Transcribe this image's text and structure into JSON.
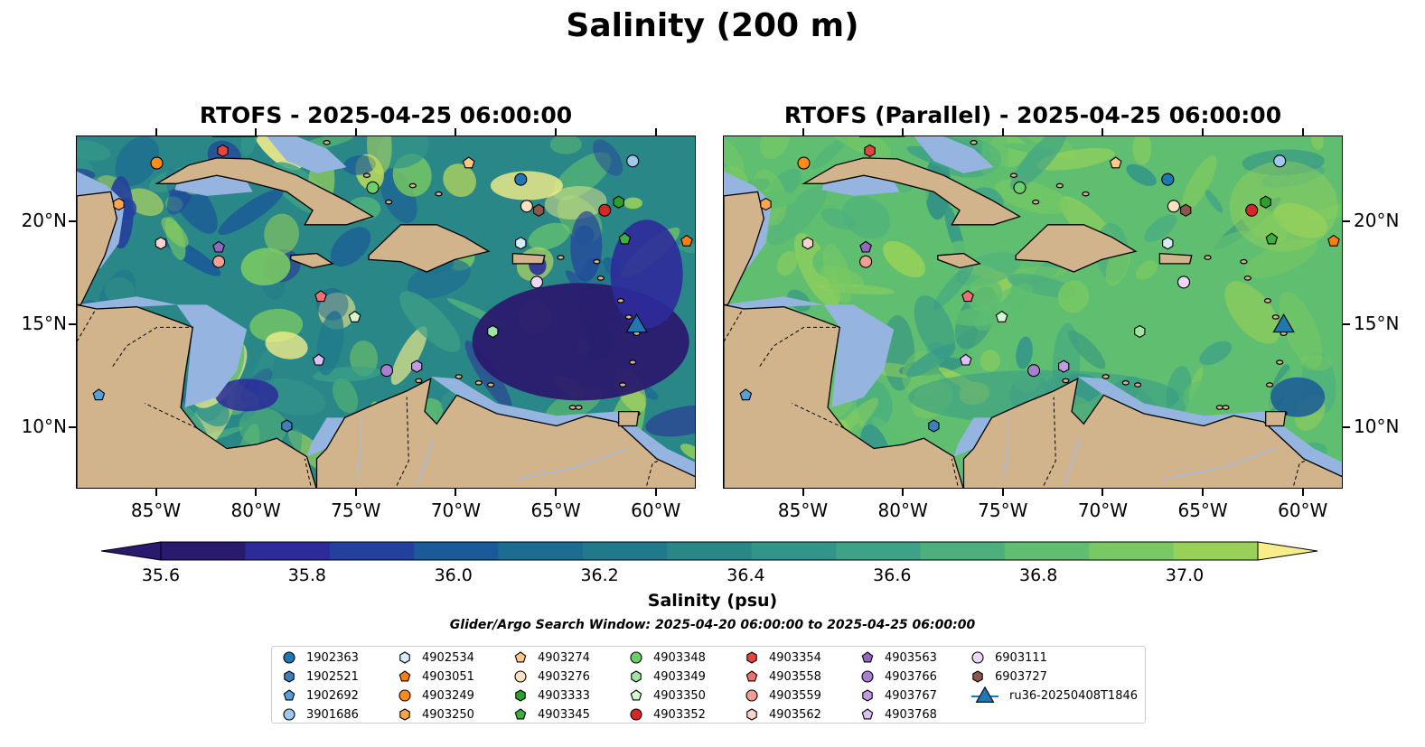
{
  "title": "Salinity (200 m)",
  "panels": [
    {
      "title": "RTOFS - 2025-04-25 06:00:00"
    },
    {
      "title": "RTOFS (Parallel) - 2025-04-25 06:00:00"
    }
  ],
  "axes": {
    "lon_ticks": [
      "85°W",
      "80°W",
      "75°W",
      "70°W",
      "65°W",
      "60°W"
    ],
    "lat_ticks": [
      "20°N",
      "15°N",
      "10°N"
    ],
    "lon_range": [
      -89,
      -58
    ],
    "lat_range": [
      7,
      24.2
    ]
  },
  "colorbar": {
    "label": "Salinity (psu)",
    "tick_labels": [
      "35.6",
      "35.8",
      "36.0",
      "36.2",
      "36.4",
      "36.6",
      "36.8",
      "37.0"
    ],
    "range": [
      35.6,
      37.1
    ],
    "extend": "both",
    "colors": [
      "#2a1a6e",
      "#2d2a9a",
      "#24409e",
      "#1a5a98",
      "#1d6c92",
      "#217a8c",
      "#2a8787",
      "#33958a",
      "#3ea287",
      "#4db07c",
      "#5fbe70",
      "#78c963",
      "#97d15a",
      "#bcda5c",
      "#f5ee8a"
    ]
  },
  "search_window": "Glider/Argo Search Window: 2025-04-20 06:00:00 to 2025-04-25 06:00:00",
  "legend": [
    {
      "label": "1902363",
      "color": "#1f77b4",
      "marker": "circle"
    },
    {
      "label": "1902521",
      "color": "#3d7fba",
      "marker": "hexagon"
    },
    {
      "label": "1902692",
      "color": "#5aa0d8",
      "marker": "pentagon"
    },
    {
      "label": "3901686",
      "color": "#9ec8ee",
      "marker": "circle"
    },
    {
      "label": "4902534",
      "color": "#d7ecfa",
      "marker": "hexagon"
    },
    {
      "label": "4903051",
      "color": "#ff7f0e",
      "marker": "pentagon"
    },
    {
      "label": "4903249",
      "color": "#ff8c1a",
      "marker": "circle"
    },
    {
      "label": "4903250",
      "color": "#ffa64d",
      "marker": "hexagon"
    },
    {
      "label": "4903274",
      "color": "#ffc98a",
      "marker": "pentagon"
    },
    {
      "label": "4903276",
      "color": "#ffe2c2",
      "marker": "circle"
    },
    {
      "label": "4903333",
      "color": "#2ca02c",
      "marker": "hexagon"
    },
    {
      "label": "4903345",
      "color": "#3fb03f",
      "marker": "pentagon"
    },
    {
      "label": "4903348",
      "color": "#6ccf6c",
      "marker": "circle"
    },
    {
      "label": "4903349",
      "color": "#a2e2a2",
      "marker": "hexagon"
    },
    {
      "label": "4903350",
      "color": "#d6f7d0",
      "marker": "pentagon"
    },
    {
      "label": "4903352",
      "color": "#d62728",
      "marker": "circle"
    },
    {
      "label": "4903354",
      "color": "#e34545",
      "marker": "hexagon"
    },
    {
      "label": "4903558",
      "color": "#ee7070",
      "marker": "pentagon"
    },
    {
      "label": "4903559",
      "color": "#f2a093",
      "marker": "circle"
    },
    {
      "label": "4903562",
      "color": "#fbd4d0",
      "marker": "hexagon"
    },
    {
      "label": "4903563",
      "color": "#9467bd",
      "marker": "pentagon"
    },
    {
      "label": "4903766",
      "color": "#a77fd1",
      "marker": "circle"
    },
    {
      "label": "4903767",
      "color": "#c09be2",
      "marker": "hexagon"
    },
    {
      "label": "4903768",
      "color": "#dcc2f2",
      "marker": "pentagon"
    },
    {
      "label": "6903111",
      "color": "#ecd6fa",
      "marker": "circle"
    },
    {
      "label": "6903727",
      "color": "#8c564b",
      "marker": "hexagon"
    },
    {
      "label": "ru36-20250408T1846",
      "color": "#1f77b4",
      "marker": "triangle"
    }
  ],
  "observations": [
    {
      "id": "1902363",
      "lon": -66.8,
      "lat": 22.1
    },
    {
      "id": "1902521",
      "lon": -78.5,
      "lat": 10.1
    },
    {
      "id": "1902692",
      "lon": -87.9,
      "lat": 11.6
    },
    {
      "id": "3901686",
      "lon": -61.2,
      "lat": 23.0
    },
    {
      "id": "4902534",
      "lon": -66.8,
      "lat": 19.0
    },
    {
      "id": "4903051",
      "lon": -58.5,
      "lat": 19.1
    },
    {
      "id": "4903249",
      "lon": -85.0,
      "lat": 22.9
    },
    {
      "id": "4903250",
      "lon": -86.9,
      "lat": 20.9
    },
    {
      "id": "4903274",
      "lon": -69.4,
      "lat": 22.9
    },
    {
      "id": "4903276",
      "lon": -66.5,
      "lat": 20.8
    },
    {
      "id": "4903333",
      "lon": -61.9,
      "lat": 21.0
    },
    {
      "id": "4903345",
      "lon": -61.6,
      "lat": 19.2
    },
    {
      "id": "4903348",
      "lon": -74.2,
      "lat": 21.7
    },
    {
      "id": "4903349",
      "lon": -68.2,
      "lat": 14.7
    },
    {
      "id": "4903350",
      "lon": -75.1,
      "lat": 15.4
    },
    {
      "id": "4903352",
      "lon": -62.6,
      "lat": 20.6
    },
    {
      "id": "4903354",
      "lon": -81.7,
      "lat": 23.5
    },
    {
      "id": "4903558",
      "lon": -76.8,
      "lat": 16.4
    },
    {
      "id": "4903559",
      "lon": -81.9,
      "lat": 18.1
    },
    {
      "id": "4903562",
      "lon": -84.8,
      "lat": 19.0
    },
    {
      "id": "4903563",
      "lon": -81.9,
      "lat": 18.8
    },
    {
      "id": "4903766",
      "lon": -73.5,
      "lat": 12.8
    },
    {
      "id": "4903767",
      "lon": -72.0,
      "lat": 13.0
    },
    {
      "id": "4903768",
      "lon": -76.9,
      "lat": 13.3
    },
    {
      "id": "6903111",
      "lon": -66.0,
      "lat": 17.1
    },
    {
      "id": "6903727",
      "lon": -65.9,
      "lat": 20.6
    },
    {
      "id": "ru36-20250408T1846",
      "lon": -61.0,
      "lat": 15.1
    }
  ]
}
